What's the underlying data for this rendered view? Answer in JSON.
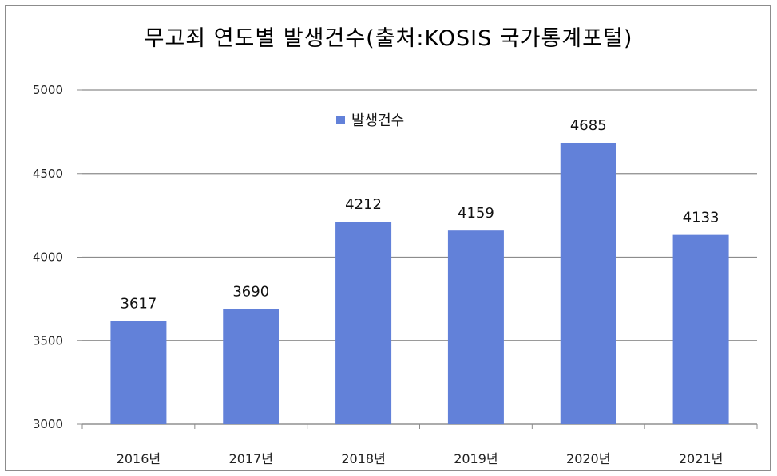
{
  "chart_data": {
    "type": "bar",
    "title": "무고죄 연도별 발생건수(출처:KOSIS 국가통계포털)",
    "categories": [
      "2016년",
      "2017년",
      "2018년",
      "2019년",
      "2020년",
      "2021년"
    ],
    "series": [
      {
        "name": "발생건수",
        "values": [
          3617,
          3690,
          4212,
          4159,
          4685,
          4133
        ]
      }
    ],
    "ylim": [
      3000,
      5000
    ],
    "yticks": [
      3000,
      3500,
      4000,
      4500,
      5000
    ],
    "grid": true,
    "legend_position": "top-center",
    "bar_color": "#6281d9",
    "grid_color": "#8c8c8c"
  }
}
